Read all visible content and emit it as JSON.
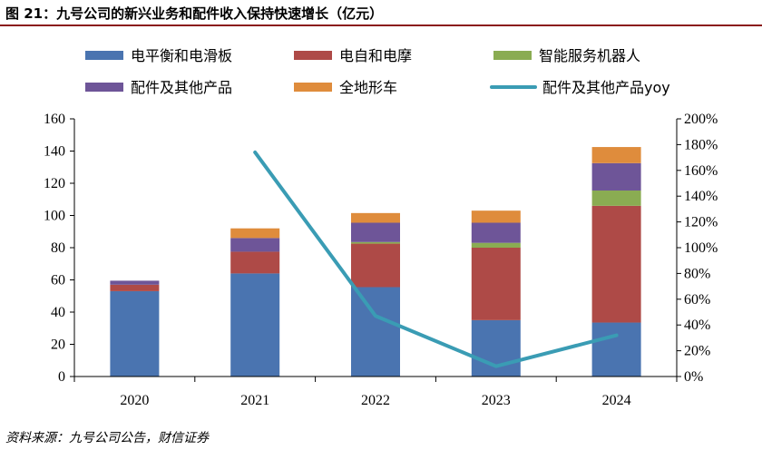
{
  "header": {
    "title": "图 21：九号公司的新兴业务和配件收入保持快速增长（亿元）"
  },
  "footer": {
    "source": "资料来源：九号公司公告，财信证券"
  },
  "colors": {
    "电平衡和电滑板": "#4a74b0",
    "电自和电摩": "#ae4a47",
    "智能服务机器人": "#8aac52",
    "配件及其他产品": "#6e5598",
    "全地形车": "#df8c3c",
    "配件及其他产品yoy": "#3a9cb4",
    "title_rule": "#8b1a1a"
  },
  "chart_data": {
    "type": "bar",
    "stacked": true,
    "title": "",
    "xlabel": "",
    "ylabel": "",
    "categories": [
      "2020",
      "2021",
      "2022",
      "2023",
      "2024"
    ],
    "ylim": [
      0,
      160
    ],
    "yticks": [
      "0",
      "20",
      "40",
      "60",
      "80",
      "100",
      "120",
      "140",
      "160"
    ],
    "y2lim": [
      0,
      2.0
    ],
    "y2ticks": [
      "0%",
      "20%",
      "40%",
      "60%",
      "80%",
      "100%",
      "120%",
      "140%",
      "160%",
      "180%",
      "200%"
    ],
    "series": [
      {
        "name": "电平衡和电滑板",
        "values": [
          53,
          64,
          55.5,
          35,
          33.5
        ]
      },
      {
        "name": "电自和电摩",
        "values": [
          4,
          13.5,
          27,
          45,
          72.5
        ]
      },
      {
        "name": "智能服务机器人",
        "values": [
          0,
          0,
          1,
          3,
          9.5
        ]
      },
      {
        "name": "配件及其他产品",
        "values": [
          2.5,
          8.5,
          12,
          12.5,
          17
        ]
      },
      {
        "name": "全地形车",
        "values": [
          0,
          6,
          6,
          7.5,
          10
        ]
      }
    ],
    "line": {
      "name": "配件及其他产品yoy",
      "axis": "right",
      "values": [
        null,
        1.74,
        0.47,
        0.08,
        0.32
      ]
    },
    "legend_rows": [
      [
        "电平衡和电滑板",
        "电自和电摩",
        "智能服务机器人"
      ],
      [
        "配件及其他产品",
        "全地形车",
        "配件及其他产品yoy"
      ]
    ],
    "legend_position": "top",
    "grid": false
  }
}
